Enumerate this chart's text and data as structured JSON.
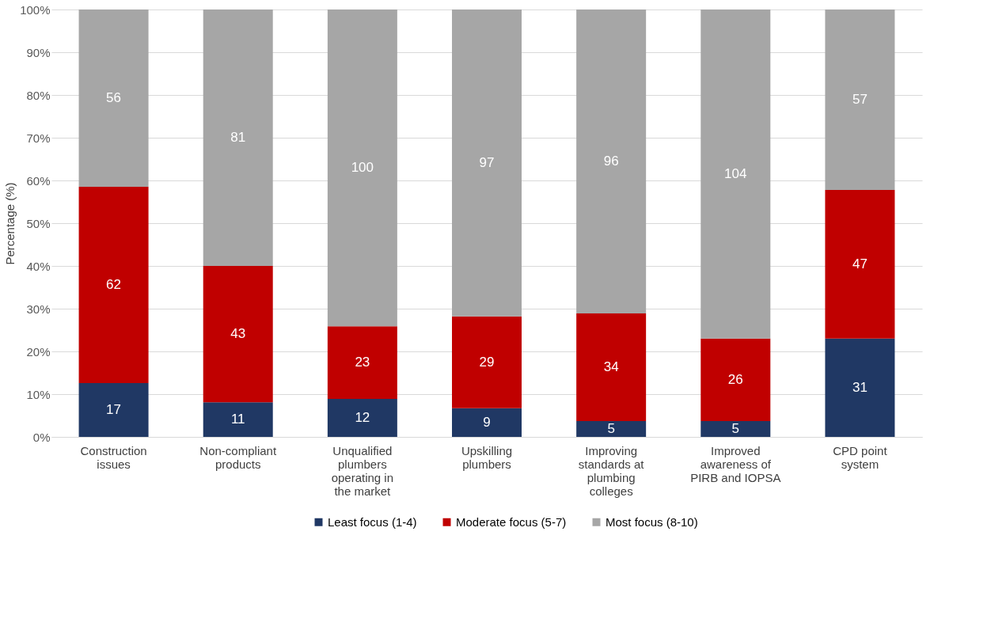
{
  "chart_data": {
    "type": "bar",
    "stacked": true,
    "ylabel": "Percentage (%)",
    "categories": [
      "Construction issues",
      "Non-compliant products",
      "Unqualified plumbers operating in the market",
      "Upskilling plumbers",
      "Improving standards at plumbing colleges",
      "Improved awareness of PIRB and IOPSA",
      "CPD point system"
    ],
    "series": [
      {
        "name": "Least focus (1-4)",
        "color": "#203864",
        "values": [
          12.6,
          8.1,
          8.9,
          6.7,
          3.7,
          3.7,
          23.0
        ]
      },
      {
        "name": "Moderate focus (5-7)",
        "color": "#c00000",
        "values": [
          45.9,
          31.9,
          17.0,
          21.5,
          25.2,
          19.3,
          34.8
        ]
      },
      {
        "name": "Most focus (8-10)",
        "color": "#a6a6a6",
        "values": [
          41.5,
          60.0,
          74.1,
          71.8,
          71.1,
          77.0,
          42.2
        ]
      }
    ],
    "annotations": [
      "17",
      "62",
      "56",
      "11",
      "43",
      "81",
      "12",
      "23",
      "100",
      "9",
      "29",
      "97",
      "5",
      "34",
      "96",
      "5",
      "26",
      "104",
      "31",
      "47",
      "57"
    ],
    "ylim": [
      0,
      100
    ],
    "yticks": [
      {
        "value": 0,
        "label": "0%"
      },
      {
        "value": 10,
        "label": "10%"
      },
      {
        "value": 20,
        "label": "20%"
      },
      {
        "value": 30,
        "label": "30%"
      },
      {
        "value": 40,
        "label": "40%"
      },
      {
        "value": 50,
        "label": "50%"
      },
      {
        "value": 60,
        "label": "60%"
      },
      {
        "value": 70,
        "label": "70%"
      },
      {
        "value": 80,
        "label": "80%"
      },
      {
        "value": 90,
        "label": "90%"
      },
      {
        "value": 100,
        "label": "100%"
      }
    ],
    "grid": "y",
    "legend": "bottom"
  }
}
